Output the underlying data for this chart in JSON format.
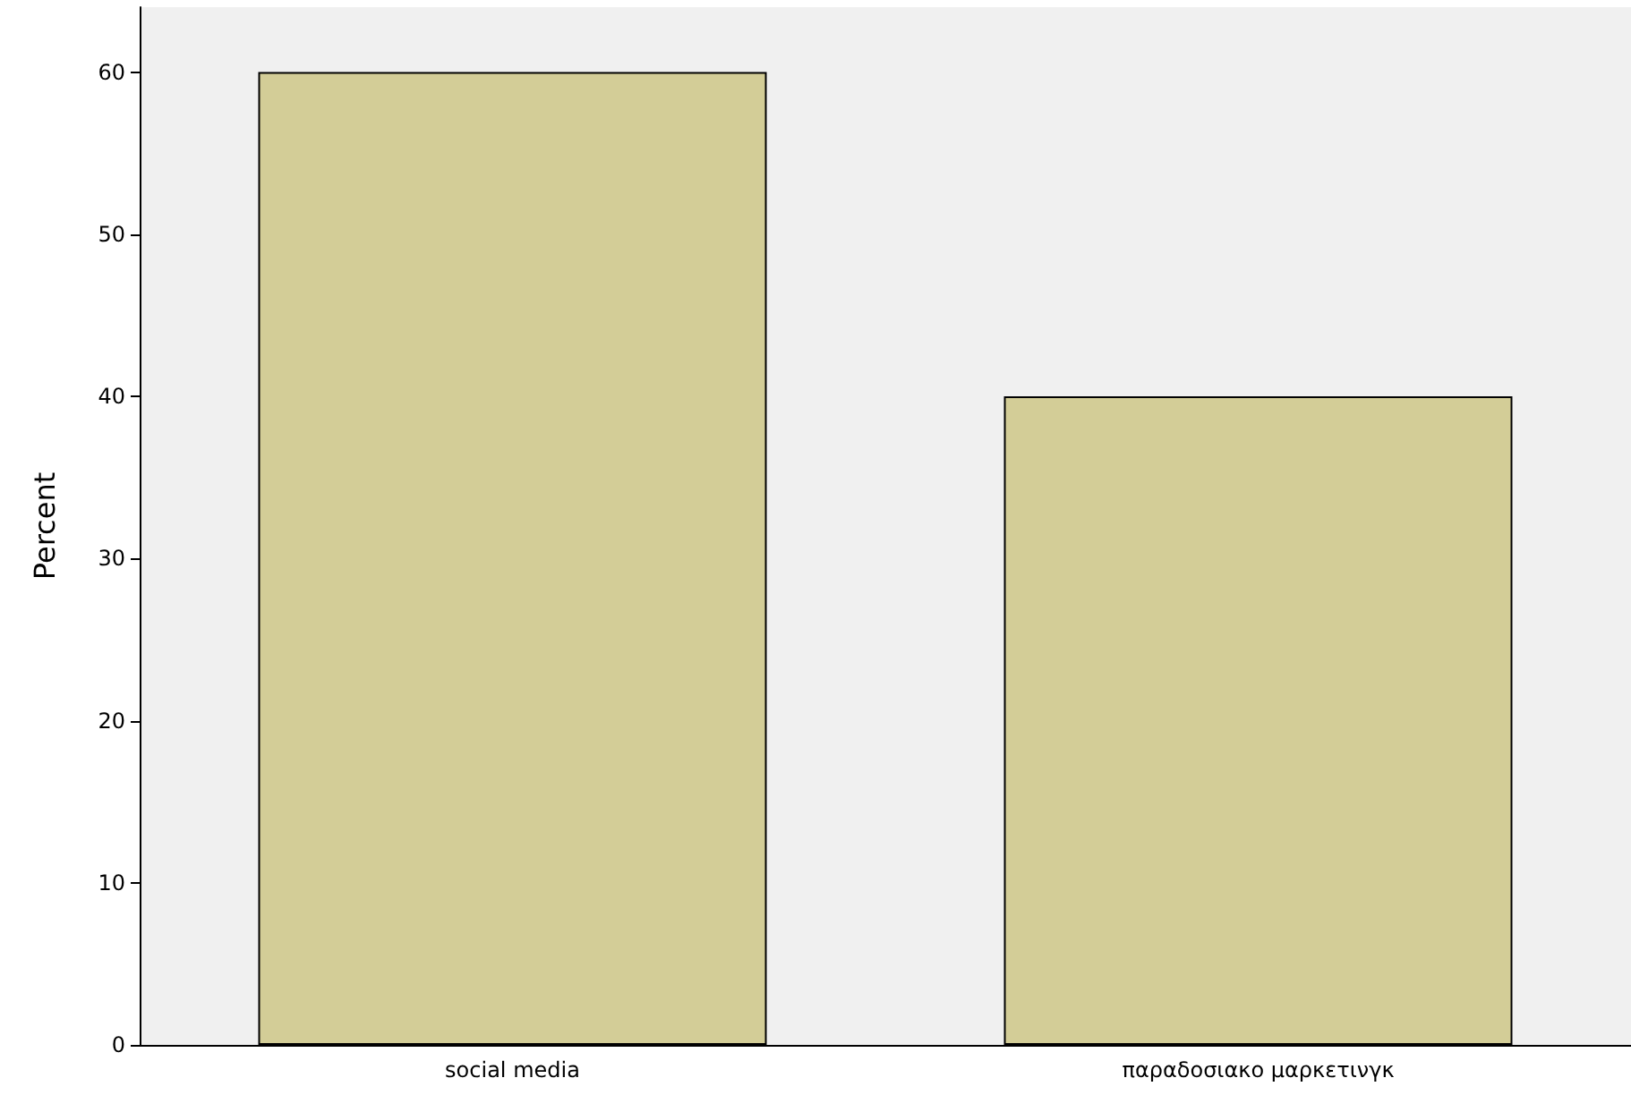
{
  "chart_data": {
    "type": "bar",
    "ylabel": "Percent",
    "categories": [
      "social media",
      "παραδοσιακο μαρκετινγκ"
    ],
    "values": [
      60,
      40
    ],
    "color": "#d3cd97",
    "ylim": [
      0,
      64
    ],
    "yticks": [
      0,
      10,
      20,
      30,
      40,
      50,
      60
    ],
    "grid": false
  }
}
